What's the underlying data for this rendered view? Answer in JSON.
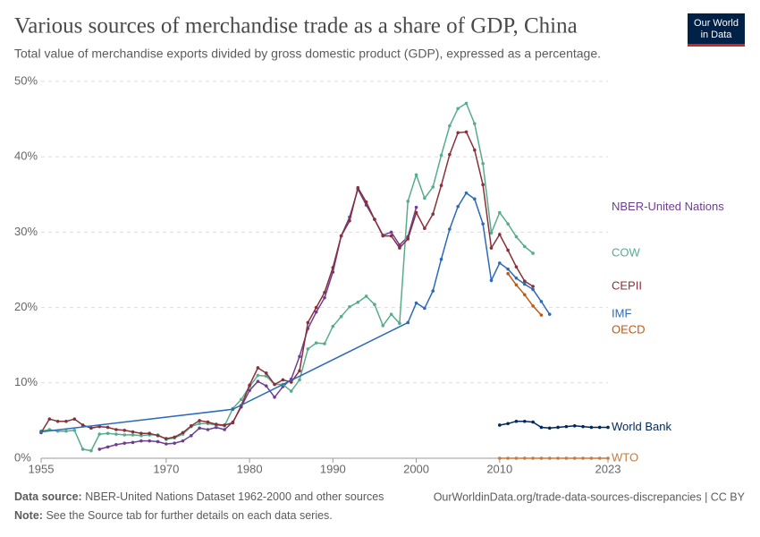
{
  "chart_data": {
    "type": "line",
    "title": "Various sources of merchandise trade as a share of GDP, China",
    "subtitle": "Total value of merchandise exports divided by gross domestic product (GDP), expressed as a percentage.",
    "logo": [
      "Our World",
      "in Data"
    ],
    "source_label": "Data source:",
    "source": "NBER-United Nations Dataset 1962-2000 and other sources",
    "url": "OurWorldinData.org/trade-data-sources-discrepancies | CC BY",
    "note_label": "Note:",
    "note": "See the Source tab for further details on each data series.",
    "xlim": [
      1955,
      2023
    ],
    "xticks": [
      1955,
      1970,
      1980,
      1990,
      2000,
      2010,
      2023
    ],
    "ylim": [
      0,
      50
    ],
    "yticks": [
      {
        "value": 0,
        "label": "0%"
      },
      {
        "value": 10,
        "label": "10%"
      },
      {
        "value": 20,
        "label": "20%"
      },
      {
        "value": 30,
        "label": "30%"
      },
      {
        "value": 40,
        "label": "40%"
      },
      {
        "value": 50,
        "label": "50%"
      }
    ],
    "grid": true,
    "series": [
      {
        "name": "NBER-United Nations",
        "color": "#6d3e91",
        "x": [
          1962,
          1963,
          1964,
          1965,
          1966,
          1967,
          1968,
          1969,
          1970,
          1971,
          1972,
          1973,
          1974,
          1975,
          1976,
          1977,
          1978,
          1979,
          1980,
          1981,
          1982,
          1983,
          1984,
          1985,
          1986,
          1987,
          1988,
          1989,
          1990,
          1991,
          1992,
          1993,
          1994,
          1995,
          1996,
          1997,
          1998,
          1999,
          2000
        ],
        "values": [
          1.2,
          1.5,
          1.8,
          2.0,
          2.1,
          2.3,
          2.3,
          2.2,
          1.9,
          2.0,
          2.3,
          3.0,
          4.0,
          3.8,
          4.1,
          3.8,
          4.8,
          6.8,
          9.0,
          10.2,
          9.6,
          8.1,
          9.5,
          10.5,
          13.5,
          17.2,
          19.4,
          21.3,
          24.7,
          29.5,
          32.0,
          35.7,
          33.6,
          31.7,
          29.6,
          30.0,
          28.3,
          29.4,
          33.3
        ]
      },
      {
        "name": "COW",
        "color": "#58ac8c",
        "x": [
          1955,
          1956,
          1957,
          1958,
          1959,
          1960,
          1961,
          1962,
          1963,
          1964,
          1965,
          1966,
          1967,
          1968,
          1969,
          1970,
          1971,
          1972,
          1973,
          1974,
          1975,
          1976,
          1977,
          1978,
          1979,
          1980,
          1981,
          1982,
          1983,
          1984,
          1985,
          1986,
          1987,
          1988,
          1989,
          1990,
          1991,
          1992,
          1993,
          1994,
          1995,
          1996,
          1997,
          1998,
          1999,
          2000,
          2001,
          2002,
          2003,
          2004,
          2005,
          2006,
          2007,
          2008,
          2009,
          2010,
          2011,
          2012,
          2013,
          2014
        ],
        "values": [
          3.6,
          3.8,
          3.6,
          3.6,
          3.7,
          1.2,
          1.0,
          3.2,
          3.3,
          3.2,
          3.1,
          3.1,
          3.0,
          3.1,
          3.1,
          2.5,
          2.7,
          3.2,
          4.2,
          4.6,
          4.6,
          4.4,
          4.3,
          6.6,
          7.8,
          9.5,
          11.0,
          10.9,
          9.8,
          9.8,
          8.9,
          10.4,
          14.5,
          15.3,
          15.2,
          17.5,
          18.8,
          20.1,
          20.7,
          21.5,
          20.4,
          17.6,
          19.1,
          17.9,
          34.1,
          37.6,
          34.5,
          36.0,
          40.2,
          44.1,
          46.4,
          47.1,
          44.4,
          39.1,
          29.9,
          32.6,
          31.1,
          29.4,
          28.1,
          27.2
        ]
      },
      {
        "name": "CEPII",
        "color": "#883039",
        "x": [
          1955,
          1956,
          1957,
          1958,
          1959,
          1960,
          1961,
          1962,
          1963,
          1964,
          1965,
          1966,
          1967,
          1968,
          1969,
          1970,
          1971,
          1972,
          1973,
          1974,
          1975,
          1976,
          1977,
          1978,
          1979,
          1980,
          1981,
          1982,
          1983,
          1984,
          1985,
          1986,
          1987,
          1988,
          1989,
          1990,
          1991,
          1992,
          1993,
          1994,
          1995,
          1996,
          1997,
          1998,
          1999,
          2000,
          2001,
          2002,
          2003,
          2004,
          2005,
          2006,
          2007,
          2008,
          2009,
          2010,
          2011,
          2012,
          2013,
          2014
        ],
        "values": [
          3.4,
          5.2,
          4.9,
          4.9,
          5.2,
          4.4,
          4.0,
          4.2,
          4.1,
          3.8,
          3.7,
          3.5,
          3.3,
          3.3,
          3.0,
          2.6,
          2.8,
          3.4,
          4.3,
          5.0,
          4.8,
          4.5,
          4.4,
          4.7,
          7.0,
          9.7,
          12.0,
          11.3,
          9.8,
          10.4,
          10.1,
          11.6,
          18.0,
          20.0,
          22.0,
          25.3,
          29.5,
          31.5,
          35.9,
          34.0,
          31.7,
          29.5,
          29.5,
          27.9,
          29.1,
          32.6,
          30.5,
          32.4,
          36.2,
          40.3,
          43.2,
          43.3,
          40.9,
          36.3,
          27.9,
          29.7,
          27.6,
          25.4,
          23.5,
          22.8
        ]
      },
      {
        "name": "IMF",
        "color": "#2c6ab7",
        "x": [
          1955,
          1978,
          1999,
          2000,
          2001,
          2002,
          2003,
          2004,
          2005,
          2006,
          2007,
          2008,
          2009,
          2010,
          2011,
          2012,
          2013,
          2014,
          2015,
          2016
        ],
        "values": [
          3.5,
          6.5,
          18.0,
          20.6,
          19.9,
          22.2,
          26.4,
          30.4,
          33.4,
          35.2,
          34.4,
          31.1,
          23.6,
          25.9,
          25.1,
          23.9,
          23.1,
          22.4,
          20.8,
          19.1
        ]
      },
      {
        "name": "OECD",
        "color": "#be5915",
        "x": [
          2011,
          2012,
          2013,
          2014,
          2015
        ],
        "values": [
          24.5,
          23.0,
          21.7,
          20.2,
          19.0
        ]
      },
      {
        "name": "World Bank",
        "color": "#00295b",
        "x": [
          2010,
          2011,
          2012,
          2013,
          2014,
          2015,
          2016,
          2017,
          2018,
          2019,
          2020,
          2021,
          2022,
          2023
        ],
        "values": [
          4.4,
          4.6,
          4.9,
          4.9,
          4.8,
          4.1,
          4.0,
          4.1,
          4.2,
          4.3,
          4.2,
          4.1,
          4.1,
          4.1
        ]
      },
      {
        "name": "WTO",
        "color": "#c8793b",
        "x": [
          2010,
          2011,
          2012,
          2013,
          2014,
          2015,
          2016,
          2017,
          2018,
          2019,
          2020,
          2021,
          2022,
          2023
        ],
        "values": [
          0,
          0,
          0,
          0,
          0,
          0,
          0,
          0,
          0,
          0,
          0,
          0,
          0,
          0
        ]
      }
    ]
  }
}
